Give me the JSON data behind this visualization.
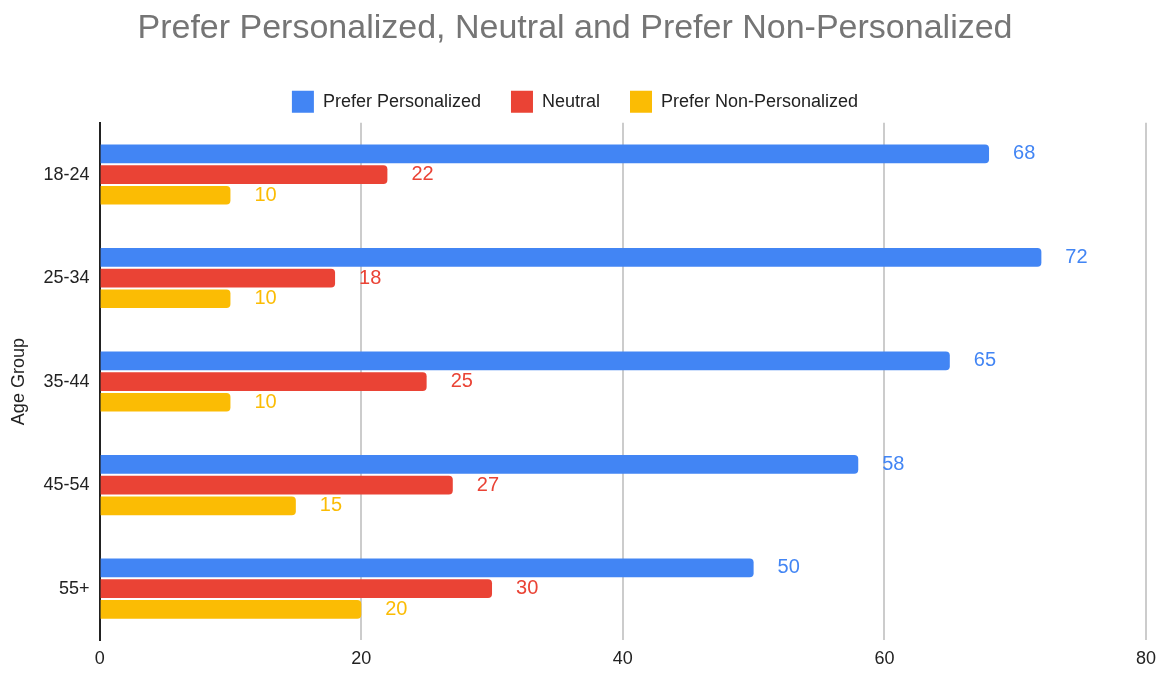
{
  "chart_data": {
    "type": "bar",
    "orientation": "horizontal",
    "title": "Prefer Personalized, Neutral and Prefer Non-Personalized",
    "ylabel": "Age Group",
    "categories": [
      "18-24",
      "25-34",
      "35-44",
      "45-54",
      "55+"
    ],
    "series": [
      {
        "name": "Prefer Personalized",
        "color": "#4285f4",
        "values": [
          68,
          72,
          65,
          58,
          50
        ]
      },
      {
        "name": "Neutral",
        "color": "#ea4335",
        "values": [
          22,
          18,
          25,
          27,
          30
        ]
      },
      {
        "name": "Prefer Non-Personalized",
        "color": "#fbbc04",
        "values": [
          10,
          10,
          10,
          15,
          20
        ]
      }
    ],
    "xlim": [
      0,
      80
    ],
    "xticks": [
      0,
      20,
      40,
      60,
      80
    ],
    "grid": "x",
    "legend": "top",
    "data_labels": true
  }
}
